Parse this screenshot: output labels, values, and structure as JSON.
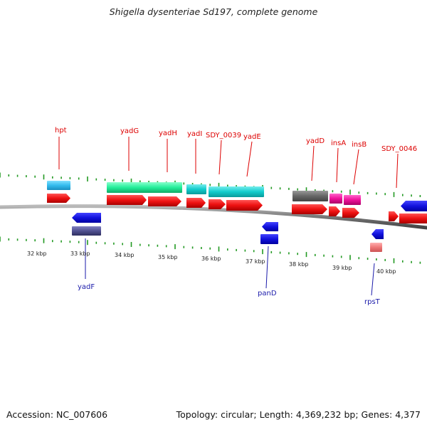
{
  "title": "Shigella dysenteriae Sd197, complete genome",
  "footer": {
    "accession": "Accession: NC_007606",
    "topology": "Topology: circular; Length: 4,369,232 bp; Genes: 4,377"
  },
  "scale_labels": [
    "32 kbp",
    "33 kbp",
    "34 kbp",
    "35 kbp",
    "36 kbp",
    "37 kbp",
    "38 kbp",
    "39 kbp",
    "40 kbp"
  ],
  "genes_top": [
    "hpt",
    "yadG",
    "yadH",
    "yadI",
    "SDY_0039",
    "yadE",
    "yadD",
    "insA",
    "insB",
    "SDY_0046"
  ],
  "genes_bottom": [
    "yadF",
    "panD",
    "rpsT"
  ],
  "colors": {
    "cds_forward": "#ee1111",
    "cds_reverse": "#1111dd",
    "tick": "#229922",
    "backbone": "#777777"
  }
}
